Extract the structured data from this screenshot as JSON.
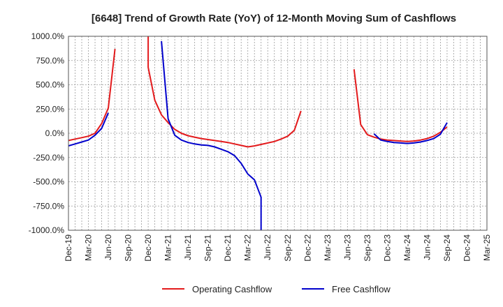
{
  "chart_data": {
    "type": "line",
    "title": "[6648]  Trend of Growth Rate (YoY) of 12-Month Moving Sum of Cashflows",
    "xlabel": "",
    "ylabel": "",
    "ylim": [
      -1000,
      1000
    ],
    "yticks": [
      1000,
      750,
      500,
      250,
      0,
      -250,
      -500,
      -750,
      -1000
    ],
    "ytick_labels": [
      "1000.0%",
      "750.0%",
      "500.0%",
      "250.0%",
      "0.0%",
      "-250.0%",
      "-500.0%",
      "-750.0%",
      "-1000.0%"
    ],
    "x_start": "2019-12",
    "x_end": "2025-03",
    "xtick_labels": [
      "Dec-19",
      "Mar-20",
      "Jun-20",
      "Sep-20",
      "Dec-20",
      "Mar-21",
      "Jun-21",
      "Sep-21",
      "Dec-21",
      "Mar-22",
      "Jun-22",
      "Sep-22",
      "Dec-22",
      "Mar-23",
      "Jun-23",
      "Sep-23",
      "Dec-23",
      "Mar-24",
      "Jun-24",
      "Sep-24",
      "Dec-24",
      "Mar-25"
    ],
    "grid": true,
    "legend_position": "bottom",
    "series": [
      {
        "name": "Operating Cashflow",
        "color": "#e31a1c",
        "points": [
          [
            "2019-12",
            -75
          ],
          [
            "2020-01",
            -60
          ],
          [
            "2020-02",
            -45
          ],
          [
            "2020-03",
            -30
          ],
          [
            "2020-04",
            0
          ],
          [
            "2020-05",
            100
          ],
          [
            "2020-06",
            260
          ],
          [
            "2020-07",
            870
          ],
          [
            null,
            null
          ],
          [
            "2020-12",
            1000
          ],
          [
            "2020-12",
            680
          ],
          [
            "2021-01",
            340
          ],
          [
            "2021-02",
            190
          ],
          [
            "2021-03",
            110
          ],
          [
            "2021-04",
            40
          ],
          [
            "2021-05",
            0
          ],
          [
            "2021-06",
            -25
          ],
          [
            "2021-07",
            -40
          ],
          [
            "2021-08",
            -55
          ],
          [
            "2021-09",
            -65
          ],
          [
            "2021-10",
            -75
          ],
          [
            "2021-11",
            -85
          ],
          [
            "2021-12",
            -95
          ],
          [
            "2022-01",
            -110
          ],
          [
            "2022-02",
            -125
          ],
          [
            "2022-03",
            -140
          ],
          [
            "2022-04",
            -130
          ],
          [
            "2022-05",
            -115
          ],
          [
            "2022-06",
            -100
          ],
          [
            "2022-07",
            -85
          ],
          [
            "2022-08",
            -60
          ],
          [
            "2022-09",
            -30
          ],
          [
            "2022-10",
            30
          ],
          [
            "2022-11",
            230
          ],
          [
            null,
            null
          ],
          [
            "2023-07",
            660
          ],
          [
            "2023-08",
            90
          ],
          [
            "2023-09",
            -15
          ],
          [
            "2023-10",
            -40
          ],
          [
            "2023-11",
            -60
          ],
          [
            "2023-12",
            -70
          ],
          [
            "2024-01",
            -75
          ],
          [
            "2024-02",
            -80
          ],
          [
            "2024-03",
            -85
          ],
          [
            "2024-04",
            -80
          ],
          [
            "2024-05",
            -70
          ],
          [
            "2024-06",
            -55
          ],
          [
            "2024-07",
            -30
          ],
          [
            "2024-08",
            10
          ],
          [
            "2024-09",
            65
          ]
        ]
      },
      {
        "name": "Free Cashflow",
        "color": "#0000cc",
        "points": [
          [
            "2019-12",
            -130
          ],
          [
            "2020-01",
            -110
          ],
          [
            "2020-02",
            -90
          ],
          [
            "2020-03",
            -70
          ],
          [
            "2020-04",
            -20
          ],
          [
            "2020-05",
            50
          ],
          [
            "2020-06",
            210
          ],
          [
            null,
            null
          ],
          [
            "2021-02",
            950
          ],
          [
            "2021-03",
            150
          ],
          [
            "2021-04",
            -20
          ],
          [
            "2021-05",
            -70
          ],
          [
            "2021-06",
            -95
          ],
          [
            "2021-07",
            -110
          ],
          [
            "2021-08",
            -120
          ],
          [
            "2021-09",
            -125
          ],
          [
            "2021-10",
            -140
          ],
          [
            "2021-11",
            -165
          ],
          [
            "2021-12",
            -190
          ],
          [
            "2022-01",
            -230
          ],
          [
            "2022-02",
            -310
          ],
          [
            "2022-03",
            -420
          ],
          [
            "2022-04",
            -480
          ],
          [
            "2022-05",
            -660
          ],
          [
            "2022-05",
            -1000
          ],
          [
            null,
            null
          ],
          [
            "2023-10",
            -5
          ],
          [
            "2023-11",
            -70
          ],
          [
            "2023-12",
            -85
          ],
          [
            "2024-01",
            -95
          ],
          [
            "2024-02",
            -100
          ],
          [
            "2024-03",
            -105
          ],
          [
            "2024-04",
            -100
          ],
          [
            "2024-05",
            -90
          ],
          [
            "2024-06",
            -75
          ],
          [
            "2024-07",
            -55
          ],
          [
            "2024-08",
            -10
          ],
          [
            "2024-09",
            110
          ]
        ]
      }
    ]
  }
}
